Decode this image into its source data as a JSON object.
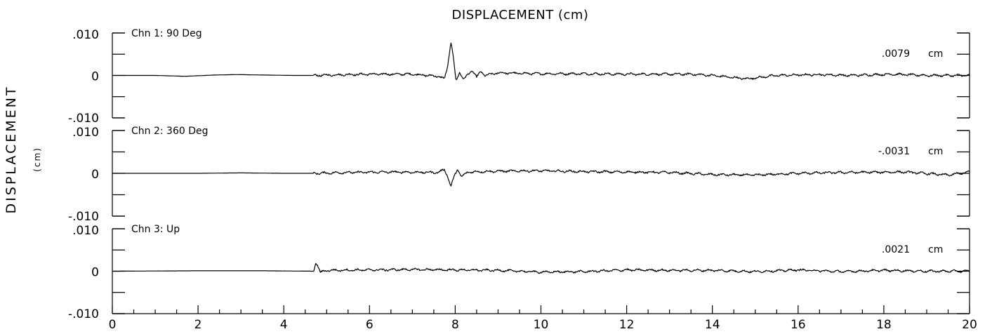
{
  "chart_data": {
    "type": "line",
    "title": "DISPLACEMENT (cm)",
    "ylabel": "DISPLACEMENT",
    "ylabel_unit": "(cm)",
    "xlim": [
      0,
      20
    ],
    "x_ticks": [
      0,
      2,
      4,
      6,
      8,
      10,
      12,
      14,
      16,
      18,
      20
    ],
    "x_tick_labels": [
      "0",
      "2",
      "4",
      "6",
      "8",
      "10",
      "12",
      "14",
      "16",
      "18",
      "20"
    ],
    "ylim": [
      -0.01,
      0.01
    ],
    "y_tick_labels": [
      ".010",
      "0",
      "-.010"
    ],
    "grid": false,
    "series": [
      {
        "name": "Chn 1: 90 Deg",
        "peak_label": ".0079",
        "peak_unit": "cm",
        "key_points": [
          [
            0,
            0
          ],
          [
            1.0,
            0
          ],
          [
            1.7,
            -0.0002
          ],
          [
            2.4,
            0.0001
          ],
          [
            2.9,
            0.0002
          ],
          [
            3.5,
            0.0001
          ],
          [
            4.2,
            0.0
          ],
          [
            4.7,
            0.0
          ],
          [
            5.5,
            0.0002
          ],
          [
            6.0,
            0.0003
          ],
          [
            7.0,
            0.0003
          ],
          [
            7.6,
            -0.0002
          ],
          [
            7.75,
            -0.0008
          ],
          [
            7.82,
            0.002
          ],
          [
            7.9,
            0.0079
          ],
          [
            7.96,
            0.004
          ],
          [
            8.02,
            -0.0015
          ],
          [
            8.1,
            0.0008
          ],
          [
            8.2,
            -0.0009
          ],
          [
            8.3,
            0.0002
          ],
          [
            8.4,
            0.0012
          ],
          [
            8.5,
            -0.0004
          ],
          [
            8.6,
            0.0009
          ],
          [
            8.7,
            0.0
          ],
          [
            9.0,
            0.0006
          ],
          [
            10.0,
            0.0004
          ],
          [
            11.0,
            0.0004
          ],
          [
            12.0,
            0.0003
          ],
          [
            13.5,
            0.0003
          ],
          [
            14.0,
            0.0
          ],
          [
            14.8,
            -0.0008
          ],
          [
            15.5,
            0.0
          ],
          [
            16.5,
            0.0002
          ],
          [
            17.2,
            0.0
          ],
          [
            18.2,
            0.0003
          ],
          [
            19.0,
            0.0
          ],
          [
            20,
            0.0
          ]
        ]
      },
      {
        "name": "Chn 2: 360 Deg",
        "peak_label": "-.0031",
        "peak_unit": "cm",
        "key_points": [
          [
            0,
            0
          ],
          [
            2.0,
            0
          ],
          [
            3.0,
            0.0001
          ],
          [
            4.0,
            0.0
          ],
          [
            4.7,
            0.0
          ],
          [
            5.5,
            0.0002
          ],
          [
            6.5,
            0.0003
          ],
          [
            7.6,
            0.0002
          ],
          [
            7.75,
            0.0009
          ],
          [
            7.82,
            -0.0006
          ],
          [
            7.9,
            -0.0031
          ],
          [
            7.96,
            -0.0012
          ],
          [
            8.05,
            0.001
          ],
          [
            8.15,
            -0.0008
          ],
          [
            8.3,
            0.0003
          ],
          [
            9.0,
            0.0005
          ],
          [
            10.0,
            0.0006
          ],
          [
            11.0,
            0.0004
          ],
          [
            12.0,
            0.0003
          ],
          [
            13.0,
            0.0002
          ],
          [
            14.0,
            -0.0003
          ],
          [
            15.0,
            -0.0004
          ],
          [
            16.0,
            0.0
          ],
          [
            17.0,
            0.0002
          ],
          [
            18.5,
            0.0003
          ],
          [
            19.5,
            -0.0004
          ],
          [
            20,
            0.0003
          ]
        ]
      },
      {
        "name": "Chn 3: Up",
        "peak_label": ".0021",
        "peak_unit": "cm",
        "key_points": [
          [
            0,
            0
          ],
          [
            2.0,
            0.0001
          ],
          [
            3.5,
            0.0001
          ],
          [
            4.7,
            0.0
          ],
          [
            4.75,
            0.0021
          ],
          [
            4.8,
            0.0012
          ],
          [
            4.85,
            -0.0003
          ],
          [
            5.0,
            0.0002
          ],
          [
            6.0,
            0.0003
          ],
          [
            7.0,
            0.0004
          ],
          [
            8.0,
            0.0003
          ],
          [
            9.0,
            0.0002
          ],
          [
            10.0,
            -0.0002
          ],
          [
            11.0,
            -0.0001
          ],
          [
            12.0,
            0.0003
          ],
          [
            13.0,
            0.0002
          ],
          [
            14.0,
            0.0002
          ],
          [
            15.0,
            -0.0001
          ],
          [
            16.0,
            0.0003
          ],
          [
            17.0,
            -0.0001
          ],
          [
            18.0,
            0.0002
          ],
          [
            19.0,
            0.0
          ],
          [
            20,
            0.0
          ]
        ]
      }
    ]
  }
}
